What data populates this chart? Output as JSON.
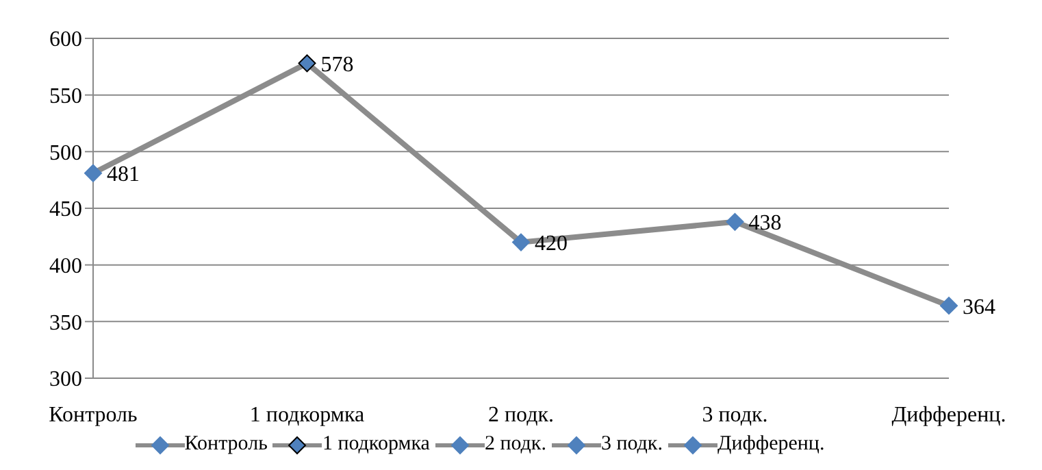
{
  "chart_data": {
    "type": "line",
    "categories": [
      "Контроль",
      "1 подкормка",
      "2 подк.",
      "3 подк.",
      "Дифференц."
    ],
    "series": [
      {
        "color": "#8c8c8c",
        "values": [
          481,
          578,
          420,
          438,
          364
        ],
        "colors": [
          "#4f81bd",
          "#4f81bd",
          "#4f81bd",
          "#4f81bd",
          "#4f81bd"
        ]
      }
    ],
    "ylim": [
      300,
      600
    ],
    "yticks": [
      300,
      350,
      400,
      450,
      500,
      550,
      600
    ],
    "grid": "y",
    "marker": "diamond",
    "line_style": "solid",
    "data_labels": true
  }
}
